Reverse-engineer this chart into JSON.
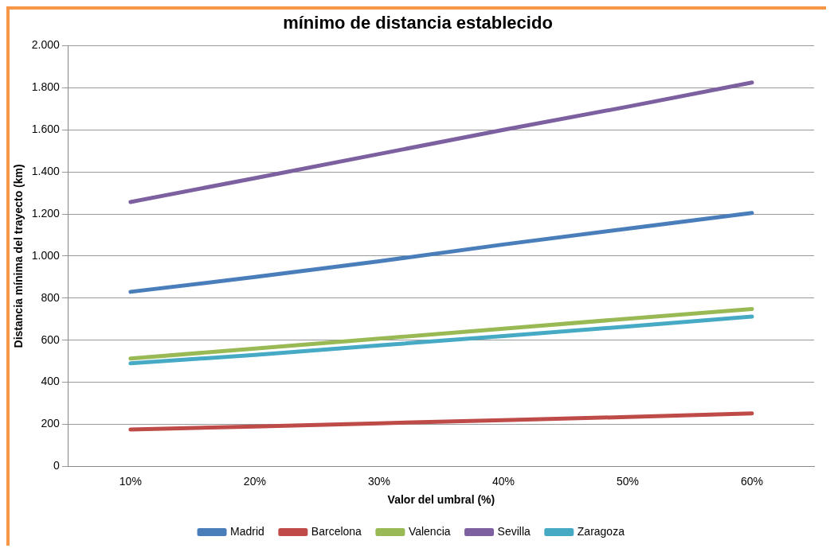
{
  "chart_data": {
    "type": "line",
    "title": "mínimo de distancia establecido",
    "xlabel": "Valor del umbral (%)",
    "ylabel": "Distancia mínima del trayecto (km)",
    "categories": [
      "10%",
      "20%",
      "30%",
      "40%",
      "50%",
      "60%"
    ],
    "series": [
      {
        "name": "Madrid",
        "color": "#4a7ebb",
        "values": [
          830,
          900,
          975,
          1055,
          1130,
          1205
        ]
      },
      {
        "name": "Barcelona",
        "color": "#be4b48",
        "values": [
          175,
          190,
          205,
          220,
          235,
          252
        ]
      },
      {
        "name": "Valencia",
        "color": "#98b954",
        "values": [
          513,
          560,
          607,
          655,
          702,
          748
        ]
      },
      {
        "name": "Sevilla",
        "color": "#7d60a0",
        "values": [
          1257,
          1370,
          1485,
          1600,
          1710,
          1825
        ]
      },
      {
        "name": "Zaragoza",
        "color": "#46aac5",
        "values": [
          490,
          530,
          575,
          620,
          665,
          712
        ]
      }
    ],
    "ylim": [
      0,
      2000
    ],
    "yticks": [
      {
        "value": 0,
        "label": "0"
      },
      {
        "value": 200,
        "label": "200"
      },
      {
        "value": 400,
        "label": "400"
      },
      {
        "value": 600,
        "label": "600"
      },
      {
        "value": 800,
        "label": "800"
      },
      {
        "value": 1000,
        "label": "1.000"
      },
      {
        "value": 1200,
        "label": "1.200"
      },
      {
        "value": 1400,
        "label": "1.400"
      },
      {
        "value": 1600,
        "label": "1.600"
      },
      {
        "value": 1800,
        "label": "1.800"
      },
      {
        "value": 2000,
        "label": "2.000"
      }
    ],
    "grid": "y",
    "legend": "bottom",
    "marker": "none",
    "line_style": "solid"
  }
}
